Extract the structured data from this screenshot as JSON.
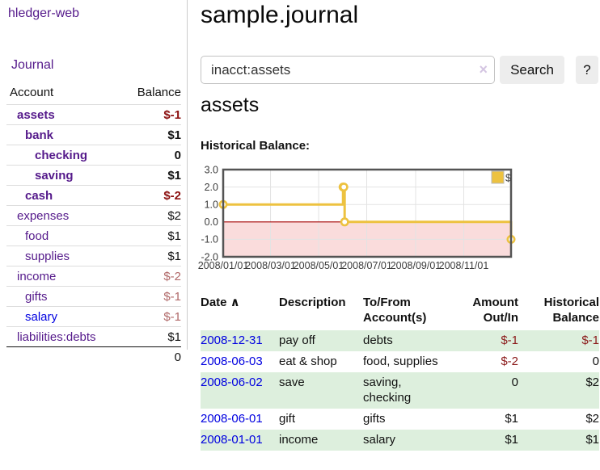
{
  "app": {
    "title": "hledger-web"
  },
  "sidebar": {
    "journal_link": "Journal",
    "accounts": {
      "header_account": "Account",
      "header_balance": "Balance",
      "rows": [
        {
          "name": "assets",
          "balance": "$-1",
          "indent": 1,
          "bold": true,
          "negative": true
        },
        {
          "name": "bank",
          "balance": "$1",
          "indent": 2,
          "bold": true,
          "negative": false
        },
        {
          "name": "checking",
          "balance": "0",
          "indent": 3,
          "bold": true,
          "negative": false
        },
        {
          "name": "saving",
          "balance": "$1",
          "indent": 3,
          "bold": true,
          "negative": false
        },
        {
          "name": "cash",
          "balance": "$-2",
          "indent": 2,
          "bold": true,
          "negative": true
        },
        {
          "name": "expenses",
          "balance": "$2",
          "indent": 1,
          "bold": false,
          "negative": false
        },
        {
          "name": "food",
          "balance": "$1",
          "indent": 2,
          "bold": false,
          "negative": false
        },
        {
          "name": "supplies",
          "balance": "$1",
          "indent": 2,
          "bold": false,
          "negative": false
        },
        {
          "name": "income",
          "balance": "$-2",
          "indent": 1,
          "bold": false,
          "negative": true
        },
        {
          "name": "gifts",
          "balance": "$-1",
          "indent": 2,
          "bold": false,
          "negative": true
        },
        {
          "name": "salary",
          "balance": "$-1",
          "indent": 2,
          "bold": false,
          "negative": true,
          "unvisited": true
        },
        {
          "name": "liabilities:debts",
          "balance": "$1",
          "indent": 1,
          "bold": false,
          "negative": false
        }
      ],
      "total": "0"
    }
  },
  "header": {
    "title": "sample.journal"
  },
  "search": {
    "value": "inacct:assets",
    "clear_icon": "×",
    "search_button": "Search",
    "help_button": "?"
  },
  "account_view": {
    "title": "assets",
    "chart_heading": "Historical Balance:"
  },
  "chart_data": {
    "type": "line",
    "step": true,
    "title": "Historical Balance:",
    "series": [
      {
        "name": "$",
        "points": [
          [
            "2008-01-01",
            1
          ],
          [
            "2008-06-01",
            2
          ],
          [
            "2008-06-02",
            2
          ],
          [
            "2008-06-03",
            0
          ],
          [
            "2008-12-31",
            -1
          ]
        ]
      }
    ],
    "x_ticks": [
      "2008/01/01",
      "2008/03/01",
      "2008/05/01",
      "2008/07/01",
      "2008/09/01",
      "2008/11/01"
    ],
    "y_ticks": [
      "3.0",
      "2.0",
      "1.0",
      "0.0",
      "-1.0",
      "-2.0"
    ],
    "ylim": [
      -2,
      3
    ],
    "xlim_dates": [
      "2008-01-01",
      "2008-12-31"
    ],
    "grid": true,
    "legend": {
      "label": "$",
      "position": "top-right"
    },
    "colors": {
      "line": "#edc240",
      "marker_fill": "#ffffff",
      "negative_region": "#fadcdc",
      "zero_line": "#a40000",
      "grid": "#e3e3e3",
      "border": "#545454"
    }
  },
  "register": {
    "columns": [
      {
        "label": "Date",
        "align": "left",
        "sortable": true
      },
      {
        "label": "Description",
        "align": "left"
      },
      {
        "label": "To/From Account(s)",
        "align": "left"
      },
      {
        "label": "Amount Out/In",
        "align": "right"
      },
      {
        "label": "Historical Balance",
        "align": "right"
      }
    ],
    "sort_indicator": "∧",
    "rows": [
      {
        "date": "2008-12-31",
        "description": "pay off",
        "accounts": "debts",
        "amount": "$-1",
        "amount_negative": true,
        "balance": "$-1",
        "balance_negative": true
      },
      {
        "date": "2008-06-03",
        "description": "eat & shop",
        "accounts": "food, supplies",
        "amount": "$-2",
        "amount_negative": true,
        "balance": "0",
        "balance_negative": false
      },
      {
        "date": "2008-06-02",
        "description": "save",
        "accounts": "saving,\nchecking",
        "amount": "0",
        "amount_negative": false,
        "balance": "$2",
        "balance_negative": false
      },
      {
        "date": "2008-06-01",
        "description": "gift",
        "accounts": "gifts",
        "amount": "$1",
        "amount_negative": false,
        "balance": "$2",
        "balance_negative": false
      },
      {
        "date": "2008-01-01",
        "description": "income",
        "accounts": "salary",
        "amount": "$1",
        "amount_negative": false,
        "balance": "$1",
        "balance_negative": false
      }
    ]
  },
  "colors": {
    "link_visited": "#551a8b",
    "link_unvisited": "#0000e0",
    "negative_strong": "#8b0f0f",
    "negative_soft": "#b06868",
    "negative_register": "#8b1a1a",
    "row_highlight_green": "#ddefdd",
    "button_bg": "#ededed"
  }
}
